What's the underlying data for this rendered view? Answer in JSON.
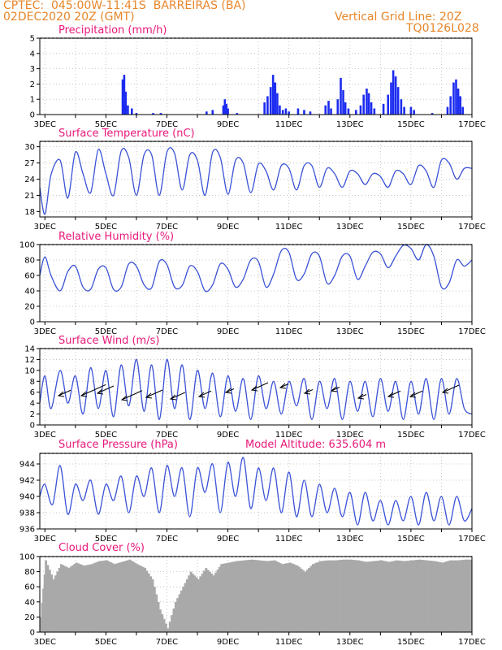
{
  "header": {
    "line1": "CPTEC:  045:00W-11:41S  BARREIRAS (BA)",
    "line2": "02DEC2020 20Z (GMT)",
    "right1": "Vertical Grid Line: 20Z",
    "right2": "TQ0126L028"
  },
  "colors": {
    "header": "#e8862a",
    "title": "#e8187a",
    "line": "#3a52d6",
    "bar": "#1c2cf0",
    "cloud": "#a9a9a9",
    "grid": "#b8b8b8"
  },
  "x_axis": {
    "ticks": [
      "3DEC",
      "5DEC",
      "7DEC",
      "9DEC",
      "11DEC",
      "13DEC",
      "15DEC",
      "17DEC"
    ],
    "range_days": [
      2.833,
      17.0
    ]
  },
  "chart_data": [
    {
      "type": "bar",
      "title": "Precipitation (mm/h)",
      "ylim": [
        0,
        5
      ],
      "yticks": [
        "0",
        "1",
        "2",
        "3",
        "4",
        "5"
      ],
      "series": [
        {
          "values": [
            {
              "x": 5.55,
              "y": 2.3
            },
            {
              "x": 5.6,
              "y": 2.6
            },
            {
              "x": 5.65,
              "y": 1.5
            },
            {
              "x": 5.72,
              "y": 0.6
            },
            {
              "x": 5.85,
              "y": 0.4
            },
            {
              "x": 6.0,
              "y": 0.1
            },
            {
              "x": 6.55,
              "y": 0.1
            },
            {
              "x": 6.8,
              "y": 0.1
            },
            {
              "x": 8.3,
              "y": 0.2
            },
            {
              "x": 8.5,
              "y": 0.3
            },
            {
              "x": 8.85,
              "y": 0.6
            },
            {
              "x": 8.9,
              "y": 1.0
            },
            {
              "x": 8.95,
              "y": 0.7
            },
            {
              "x": 9.0,
              "y": 0.4
            },
            {
              "x": 9.3,
              "y": 0.1
            },
            {
              "x": 10.2,
              "y": 0.8
            },
            {
              "x": 10.3,
              "y": 1.2
            },
            {
              "x": 10.4,
              "y": 1.8
            },
            {
              "x": 10.48,
              "y": 2.6
            },
            {
              "x": 10.55,
              "y": 2.1
            },
            {
              "x": 10.62,
              "y": 1.4
            },
            {
              "x": 10.7,
              "y": 0.6
            },
            {
              "x": 10.8,
              "y": 0.3
            },
            {
              "x": 10.9,
              "y": 0.4
            },
            {
              "x": 11.0,
              "y": 0.2
            },
            {
              "x": 11.3,
              "y": 0.4
            },
            {
              "x": 11.5,
              "y": 0.3
            },
            {
              "x": 11.7,
              "y": 0.2
            },
            {
              "x": 12.2,
              "y": 0.6
            },
            {
              "x": 12.3,
              "y": 0.9
            },
            {
              "x": 12.38,
              "y": 0.4
            },
            {
              "x": 12.6,
              "y": 1.0
            },
            {
              "x": 12.7,
              "y": 2.4
            },
            {
              "x": 12.78,
              "y": 1.6
            },
            {
              "x": 12.85,
              "y": 0.8
            },
            {
              "x": 12.95,
              "y": 0.4
            },
            {
              "x": 13.2,
              "y": 0.3
            },
            {
              "x": 13.35,
              "y": 0.6
            },
            {
              "x": 13.45,
              "y": 1.3
            },
            {
              "x": 13.55,
              "y": 1.7
            },
            {
              "x": 13.62,
              "y": 1.4
            },
            {
              "x": 13.7,
              "y": 0.8
            },
            {
              "x": 13.8,
              "y": 0.4
            },
            {
              "x": 14.1,
              "y": 0.7
            },
            {
              "x": 14.25,
              "y": 1.3
            },
            {
              "x": 14.35,
              "y": 2.1
            },
            {
              "x": 14.42,
              "y": 2.9
            },
            {
              "x": 14.5,
              "y": 2.5
            },
            {
              "x": 14.58,
              "y": 1.8
            },
            {
              "x": 14.68,
              "y": 1.0
            },
            {
              "x": 14.78,
              "y": 0.5
            },
            {
              "x": 15.0,
              "y": 0.5
            },
            {
              "x": 15.1,
              "y": 0.3
            },
            {
              "x": 15.7,
              "y": 0.1
            },
            {
              "x": 16.2,
              "y": 0.5
            },
            {
              "x": 16.3,
              "y": 1.2
            },
            {
              "x": 16.4,
              "y": 2.1
            },
            {
              "x": 16.48,
              "y": 2.3
            },
            {
              "x": 16.55,
              "y": 1.7
            },
            {
              "x": 16.62,
              "y": 1.2
            },
            {
              "x": 16.7,
              "y": 0.5
            }
          ]
        }
      ]
    },
    {
      "type": "line",
      "title": "Surface Temperature (nC)",
      "ylim": [
        17,
        31
      ],
      "yticks": [
        "18",
        "21",
        "24",
        "27",
        "30"
      ],
      "x": [
        2.833,
        3.0,
        3.2,
        3.5,
        3.75,
        4.0,
        4.25,
        4.5,
        4.75,
        5.0,
        5.25,
        5.5,
        5.75,
        6.0,
        6.25,
        6.5,
        6.75,
        7.0,
        7.25,
        7.5,
        7.75,
        8.0,
        8.25,
        8.5,
        8.75,
        9.0,
        9.25,
        9.5,
        9.75,
        10.0,
        10.25,
        10.5,
        10.75,
        11.0,
        11.25,
        11.5,
        11.75,
        12.0,
        12.25,
        12.5,
        12.75,
        13.0,
        13.25,
        13.5,
        13.75,
        14.0,
        14.25,
        14.5,
        14.75,
        15.0,
        15.25,
        15.5,
        15.75,
        16.0,
        16.25,
        16.5,
        16.75,
        17.0
      ],
      "series": [
        {
          "values": [
            22.5,
            17.5,
            24.8,
            27.5,
            20.5,
            29.0,
            25.0,
            21.5,
            29.5,
            25.0,
            21.0,
            29.2,
            28.0,
            21.0,
            28.5,
            28.5,
            21.0,
            29.0,
            28.8,
            22.0,
            28.5,
            27.5,
            21.0,
            29.0,
            28.0,
            21.2,
            27.5,
            27.0,
            21.5,
            26.8,
            25.5,
            22.0,
            26.5,
            26.0,
            22.0,
            26.5,
            26.5,
            22.5,
            26.0,
            25.0,
            22.5,
            25.5,
            25.0,
            23.0,
            25.0,
            24.5,
            22.5,
            25.5,
            25.0,
            23.0,
            26.5,
            25.5,
            22.5,
            27.5,
            27.0,
            24.0,
            26.0,
            26.0
          ]
        }
      ]
    },
    {
      "type": "line",
      "title": "Relative Humidity (%)",
      "ylim": [
        0,
        100
      ],
      "yticks": [
        "0",
        "20",
        "40",
        "60",
        "80",
        "100"
      ],
      "x": [
        2.833,
        3.0,
        3.2,
        3.5,
        3.75,
        4.0,
        4.25,
        4.5,
        4.75,
        5.0,
        5.25,
        5.5,
        5.75,
        6.0,
        6.25,
        6.5,
        6.75,
        7.0,
        7.25,
        7.5,
        7.75,
        8.0,
        8.25,
        8.5,
        8.75,
        9.0,
        9.25,
        9.5,
        9.75,
        10.0,
        10.25,
        10.5,
        10.75,
        11.0,
        11.25,
        11.5,
        11.75,
        12.0,
        12.25,
        12.5,
        12.75,
        13.0,
        13.25,
        13.5,
        13.75,
        14.0,
        14.25,
        14.5,
        14.75,
        15.0,
        15.25,
        15.5,
        15.75,
        16.0,
        16.25,
        16.5,
        16.75,
        17.0
      ],
      "series": [
        {
          "values": [
            60,
            84,
            60,
            40,
            65,
            72,
            45,
            42,
            68,
            70,
            42,
            45,
            75,
            72,
            48,
            44,
            78,
            74,
            45,
            47,
            72,
            65,
            40,
            48,
            75,
            68,
            45,
            55,
            80,
            78,
            45,
            62,
            92,
            90,
            55,
            62,
            88,
            85,
            50,
            60,
            85,
            85,
            55,
            72,
            90,
            88,
            70,
            85,
            99,
            95,
            80,
            100,
            85,
            45,
            50,
            80,
            72,
            80
          ]
        }
      ]
    },
    {
      "type": "line",
      "title": "Surface Wind (m/s)",
      "ylim": [
        0,
        14
      ],
      "yticks": [
        "0",
        "2",
        "4",
        "6",
        "8",
        "10",
        "12",
        "14"
      ],
      "x": [
        2.833,
        3.0,
        3.2,
        3.5,
        3.75,
        4.0,
        4.25,
        4.5,
        4.75,
        5.0,
        5.25,
        5.5,
        5.75,
        6.0,
        6.25,
        6.5,
        6.75,
        7.0,
        7.25,
        7.5,
        7.75,
        8.0,
        8.25,
        8.5,
        8.75,
        9.0,
        9.25,
        9.5,
        9.75,
        10.0,
        10.25,
        10.5,
        10.75,
        11.0,
        11.25,
        11.5,
        11.75,
        12.0,
        12.25,
        12.5,
        12.75,
        13.0,
        13.25,
        13.5,
        13.75,
        14.0,
        14.25,
        14.5,
        14.75,
        15.0,
        15.25,
        15.5,
        15.75,
        16.0,
        16.25,
        16.5,
        16.75,
        17.0
      ],
      "series": [
        {
          "values": [
            4.0,
            9.0,
            3.0,
            10.0,
            4.0,
            9.0,
            2.0,
            10.5,
            3.0,
            10.0,
            1.5,
            11.0,
            3.5,
            12.0,
            2.5,
            11.0,
            1.0,
            12.0,
            3.0,
            11.0,
            1.0,
            10.0,
            3.0,
            9.5,
            1.5,
            9.0,
            2.5,
            8.5,
            1.0,
            9.0,
            3.0,
            8.0,
            2.0,
            8.0,
            3.5,
            8.5,
            1.0,
            8.0,
            3.0,
            8.5,
            1.0,
            8.0,
            2.5,
            8.0,
            1.5,
            8.5,
            2.5,
            8.0,
            1.0,
            8.0,
            2.0,
            8.5,
            1.0,
            8.5,
            2.0,
            8.5,
            3.0,
            2.0
          ]
        }
      ]
    },
    {
      "type": "line",
      "title": "Surface Pressure (hPa)",
      "annotation": "Model Altitude: 635.604 m",
      "ylim": [
        936,
        945.3
      ],
      "yticks": [
        "936",
        "938",
        "940",
        "942",
        "944"
      ],
      "x": [
        2.833,
        3.0,
        3.25,
        3.5,
        3.75,
        4.0,
        4.25,
        4.5,
        4.75,
        5.0,
        5.25,
        5.5,
        5.75,
        6.0,
        6.25,
        6.5,
        6.75,
        7.0,
        7.25,
        7.5,
        7.75,
        8.0,
        8.25,
        8.5,
        8.75,
        9.0,
        9.25,
        9.5,
        9.75,
        10.0,
        10.25,
        10.5,
        10.75,
        11.0,
        11.25,
        11.5,
        11.75,
        12.0,
        12.25,
        12.5,
        12.75,
        13.0,
        13.25,
        13.5,
        13.75,
        14.0,
        14.25,
        14.5,
        14.75,
        15.0,
        15.25,
        15.5,
        15.75,
        16.0,
        16.25,
        16.5,
        16.75,
        17.0
      ],
      "series": [
        {
          "values": [
            940.0,
            941.5,
            939.0,
            943.8,
            937.8,
            941.5,
            939.5,
            942.0,
            937.8,
            941.5,
            939.5,
            942.5,
            938.0,
            942.5,
            940.0,
            943.5,
            938.0,
            943.8,
            940.0,
            943.5,
            937.5,
            943.5,
            940.5,
            944.0,
            938.0,
            944.2,
            940.0,
            944.8,
            938.5,
            943.5,
            939.5,
            943.5,
            938.0,
            943.0,
            937.5,
            942.0,
            937.5,
            941.5,
            938.0,
            941.0,
            937.5,
            940.5,
            936.5,
            940.5,
            937.0,
            939.5,
            936.5,
            939.5,
            937.0,
            940.0,
            936.5,
            940.5,
            937.0,
            940.0,
            936.5,
            940.0,
            937.0,
            938.5
          ]
        }
      ]
    },
    {
      "type": "bar",
      "title": "Cloud Cover (%)",
      "ylim": [
        0,
        100
      ],
      "yticks": [
        "0",
        "20",
        "40",
        "60",
        "80",
        "100"
      ],
      "x": [
        2.833,
        3.0,
        3.25,
        3.5,
        3.75,
        4.0,
        4.25,
        4.5,
        4.75,
        5.0,
        5.25,
        5.5,
        5.75,
        6.0,
        6.25,
        6.5,
        6.75,
        7.0,
        7.25,
        7.5,
        7.75,
        8.0,
        8.25,
        8.5,
        8.75,
        9.0,
        9.25,
        9.5,
        9.75,
        10.0,
        10.25,
        10.5,
        10.75,
        11.0,
        11.25,
        11.5,
        11.75,
        12.0,
        12.25,
        12.5,
        12.75,
        13.0,
        13.25,
        13.5,
        13.75,
        14.0,
        14.25,
        14.5,
        14.75,
        15.0,
        15.25,
        15.5,
        15.75,
        16.0,
        16.25,
        16.5,
        16.75,
        17.0
      ],
      "series": [
        {
          "values": [
            20,
            95,
            70,
            90,
            85,
            92,
            88,
            90,
            94,
            95,
            90,
            93,
            96,
            90,
            85,
            70,
            30,
            5,
            40,
            60,
            80,
            70,
            85,
            75,
            90,
            92,
            94,
            95,
            96,
            95,
            94,
            95,
            90,
            92,
            88,
            80,
            90,
            94,
            95,
            95,
            96,
            96,
            95,
            93,
            94,
            95,
            93,
            95,
            94,
            95,
            96,
            95,
            94,
            92,
            95,
            95,
            96,
            96
          ]
        }
      ]
    }
  ]
}
